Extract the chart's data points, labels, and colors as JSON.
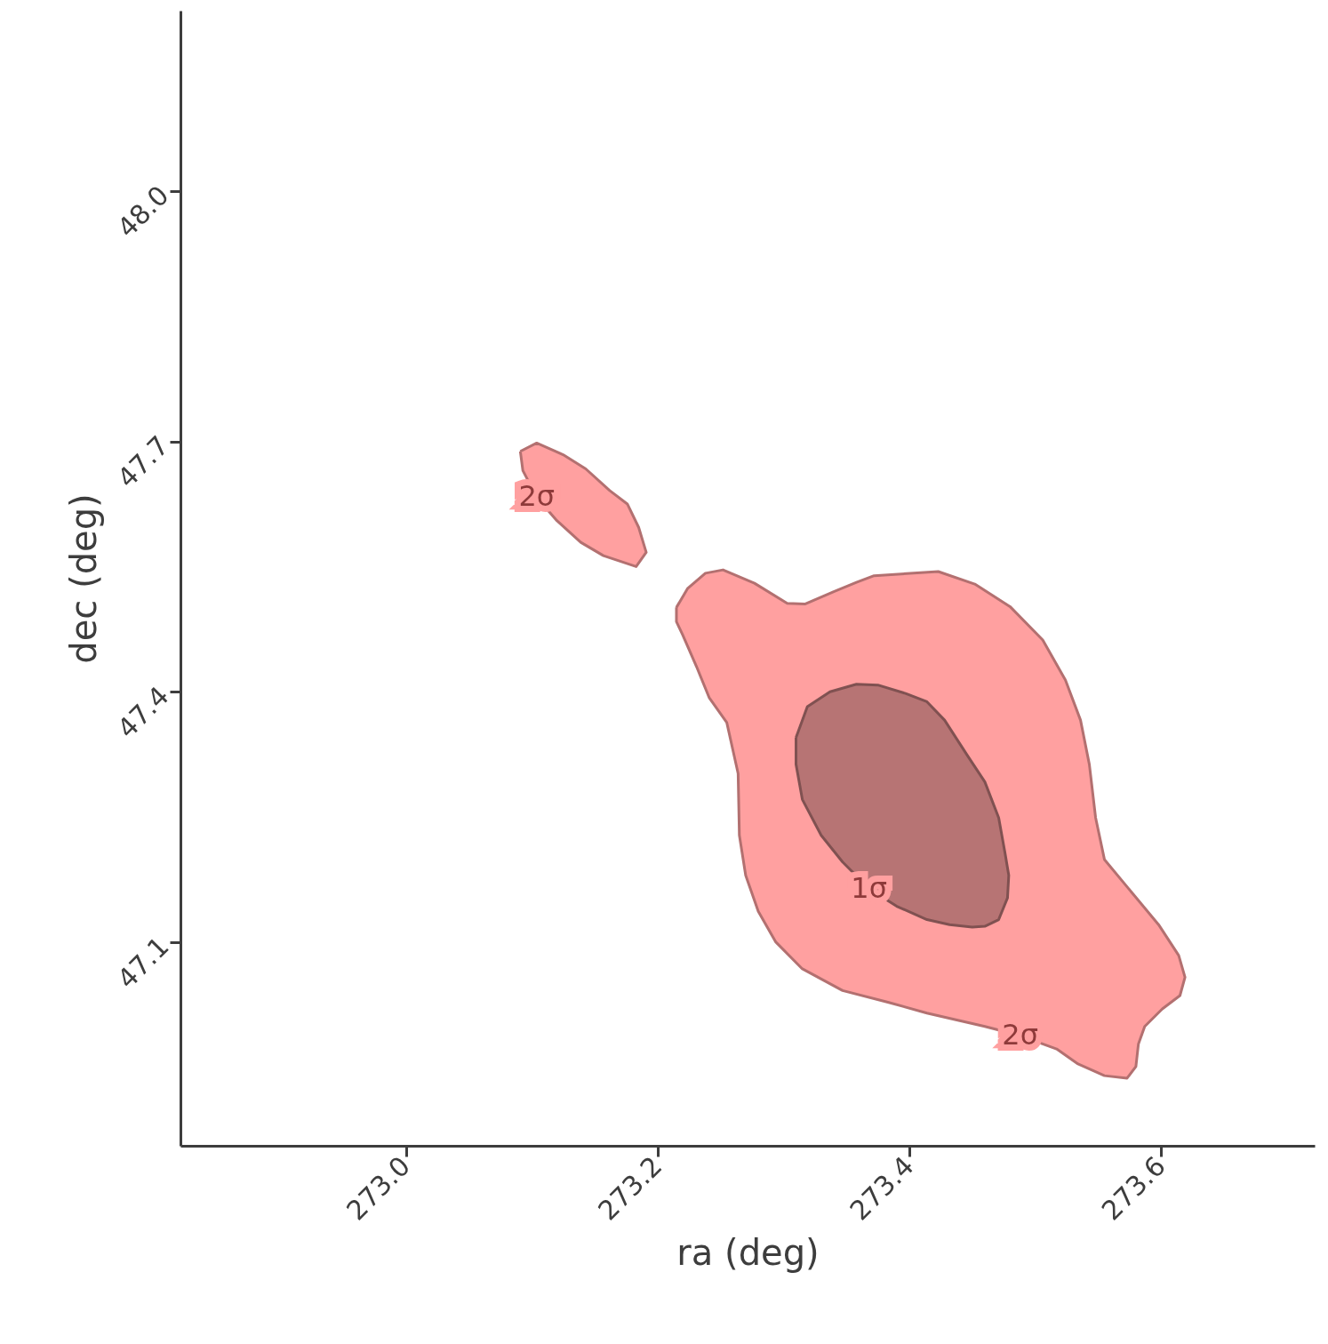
{
  "chart_data": {
    "type": "area",
    "xlabel": "ra (deg)",
    "ylabel": "dec (deg)",
    "xlim": [
      272.821,
      273.722
    ],
    "ylim": [
      46.856,
      48.216
    ],
    "xticks": [
      {
        "value": 273.0,
        "label": "273.0"
      },
      273.2,
      273.4,
      273.6
    ],
    "yticks": [
      {
        "value": 47.1,
        "label": "47.1"
      },
      47.4,
      47.7,
      {
        "value": 48.0,
        "label": "48.0"
      }
    ],
    "grid": false,
    "marker": "none",
    "line_style": "solid",
    "series": [
      {
        "color": "#ffa0a0",
        "x": [
          273.091,
          273.104,
          273.125,
          273.143,
          273.162,
          273.176,
          273.185,
          273.191,
          273.183,
          273.157,
          273.139,
          273.12,
          273.104,
          273.093
        ],
        "values": [
          47.688,
          47.698,
          47.684,
          47.667,
          47.641,
          47.625,
          47.597,
          47.567,
          47.55,
          47.563,
          47.579,
          47.605,
          47.633,
          47.665
        ]
      },
      {
        "color": "#ffa0a0",
        "x": [
          273.215,
          273.224,
          273.238,
          273.252,
          273.277,
          273.303,
          273.317,
          273.34,
          273.358,
          273.372,
          273.423,
          273.452,
          273.48,
          273.506,
          273.524,
          273.536,
          273.543,
          273.548,
          273.555,
          273.577,
          273.598,
          273.614,
          273.619,
          273.615,
          273.601,
          273.587,
          273.582,
          273.58,
          273.573,
          273.555,
          273.534,
          273.517,
          273.488,
          273.46,
          273.414,
          273.383,
          273.347,
          273.315,
          273.294,
          273.28,
          273.27,
          273.265,
          273.264,
          273.255,
          273.241,
          273.231,
          273.22,
          273.215
        ],
        "values": [
          47.501,
          47.524,
          47.542,
          47.546,
          47.53,
          47.506,
          47.505,
          47.52,
          47.531,
          47.539,
          47.544,
          47.529,
          47.502,
          47.462,
          47.414,
          47.366,
          47.313,
          47.249,
          47.199,
          47.159,
          47.121,
          47.084,
          47.058,
          47.036,
          47.02,
          46.999,
          46.978,
          46.951,
          46.937,
          46.94,
          46.954,
          46.972,
          46.988,
          46.999,
          47.015,
          47.028,
          47.042,
          47.068,
          47.1,
          47.137,
          47.18,
          47.228,
          47.302,
          47.363,
          47.393,
          47.43,
          47.468,
          47.484
        ]
      },
      {
        "color": "#b77474",
        "x": [
          273.31,
          273.319,
          273.337,
          273.358,
          273.375,
          273.397,
          273.414,
          273.428,
          273.446,
          273.46,
          273.471,
          273.476,
          273.479,
          273.478,
          273.471,
          273.46,
          273.45,
          273.432,
          273.414,
          273.39,
          273.368,
          273.347,
          273.33,
          273.315,
          273.31
        ],
        "values": [
          47.345,
          47.382,
          47.4,
          47.409,
          47.408,
          47.398,
          47.388,
          47.366,
          47.324,
          47.292,
          47.249,
          47.207,
          47.18,
          47.153,
          47.127,
          47.119,
          47.118,
          47.121,
          47.127,
          47.143,
          47.164,
          47.196,
          47.228,
          47.271,
          47.313
        ]
      }
    ],
    "annotations": [
      {
        "text": "1σ",
        "x": 273.368,
        "y": 47.164
      },
      {
        "text": "2σ",
        "x": 273.488,
        "y": 46.988
      },
      {
        "text": "2σ",
        "x": 273.104,
        "y": 47.633
      }
    ]
  }
}
